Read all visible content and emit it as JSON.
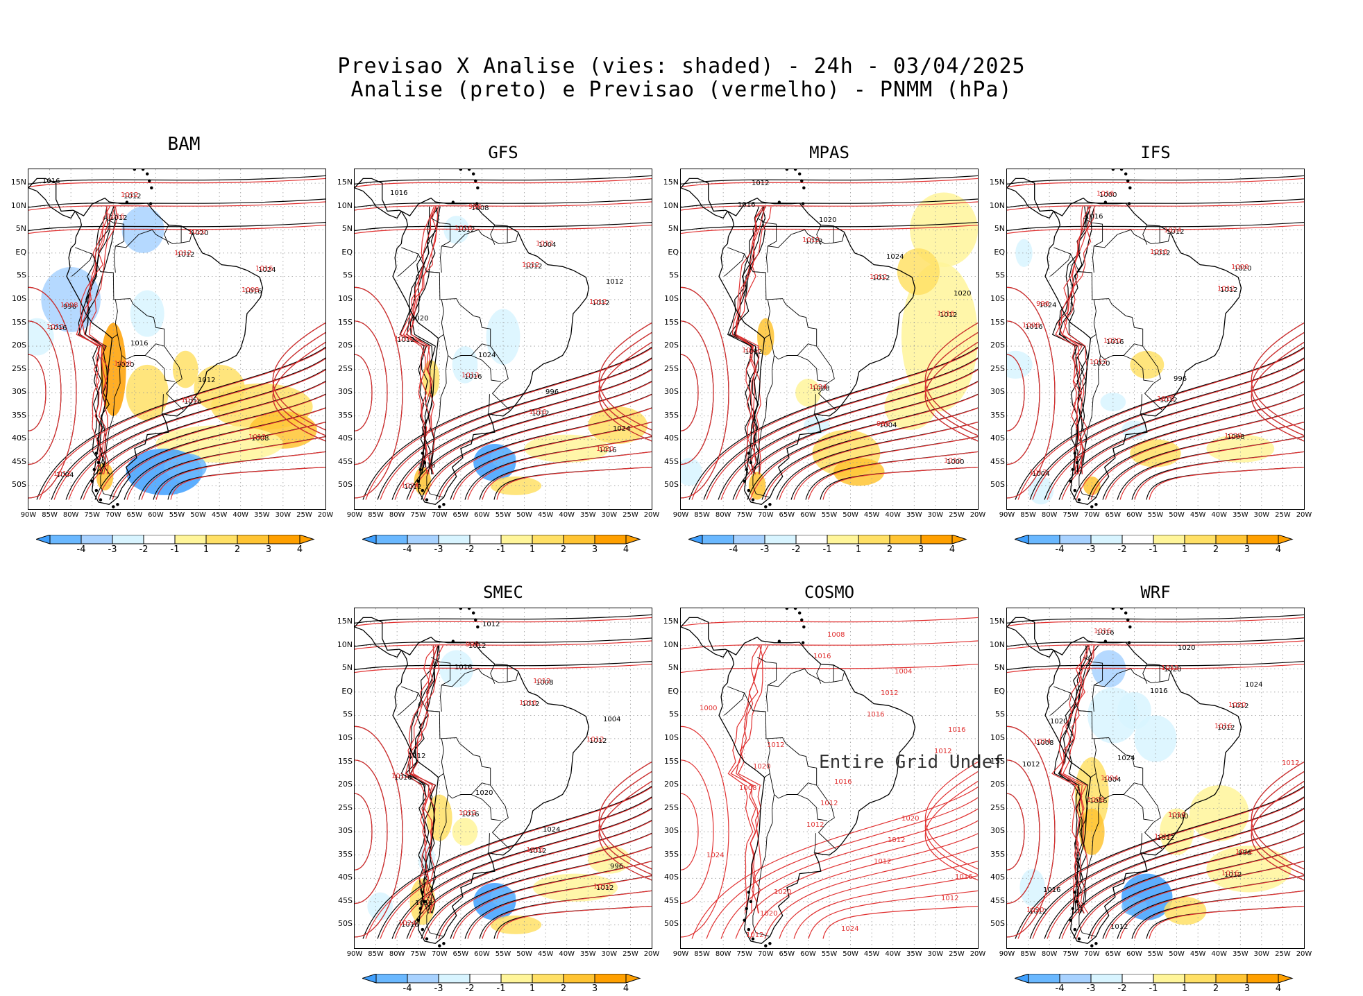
{
  "title": {
    "line1": "Previsao X Analise (vies: shaded) - 24h - 03/04/2025",
    "line2": "Analise (preto) e Previsao (vermelho) - PNMM (hPa)"
  },
  "latitude_labels": [
    "15N",
    "10N",
    "5N",
    "EQ",
    "5S",
    "10S",
    "15S",
    "20S",
    "25S",
    "30S",
    "35S",
    "40S",
    "45S",
    "50S"
  ],
  "longitude_labels": [
    "90W",
    "85W",
    "80W",
    "75W",
    "70W",
    "65W",
    "60W",
    "55W",
    "50W",
    "45W",
    "40W",
    "35W",
    "30W",
    "25W",
    "20W"
  ],
  "colorbar": {
    "labels": [
      "-4",
      "-3",
      "-2",
      "-1",
      "1",
      "2",
      "3",
      "4"
    ],
    "colors": [
      "#3fa0ff",
      "#6ab8ff",
      "#a8d2ff",
      "#d8f4ff",
      "#ffffff",
      "#fff59a",
      "#ffe066",
      "#ffc433",
      "#ffa000"
    ]
  },
  "colors": {
    "analysis": "#000000",
    "forecast": "#e03030"
  },
  "undef_text": "Entire Grid Undef",
  "panels": [
    {
      "name": "BAM",
      "shaded": true,
      "has_analysis": true,
      "has_colorbar": true,
      "labels_black": [
        "1016",
        "1012",
        "1012",
        "1016",
        "1016",
        "1020",
        "1016",
        "1008",
        "1004",
        "1012",
        "1020",
        "1024",
        "996",
        "1016",
        "1012"
      ],
      "labels_red": [
        "1016",
        "1012",
        "1008",
        "1012",
        "1008",
        "1012",
        "1012",
        "1012",
        "1012",
        "1020",
        "1016",
        "1008"
      ]
    },
    {
      "name": "GFS",
      "shaded": true,
      "has_analysis": true,
      "has_colorbar": true,
      "labels_black": [
        "1016",
        "1012",
        "1012",
        "1012",
        "1012",
        "1016",
        "1012",
        "1016",
        "1012",
        "1008",
        "1004",
        "1012",
        "1020",
        "1024",
        "996",
        "1024",
        "1016"
      ],
      "labels_red": [
        "1016",
        "1012",
        "1012",
        "1016",
        "1012",
        "1016",
        "1020",
        "1024",
        "996",
        "1012"
      ]
    },
    {
      "name": "MPAS",
      "shaded": true,
      "has_analysis": true,
      "has_colorbar": true,
      "labels_black": [
        "1016",
        "1012",
        "1012",
        "1012",
        "1012",
        "1008",
        "1004",
        "1000",
        "1012",
        "1020",
        "1024",
        "1020"
      ],
      "labels_red": [
        "1012",
        "1012",
        "1016",
        "1012",
        "1024",
        "996",
        "1012"
      ]
    },
    {
      "name": "IFS",
      "shaded": true,
      "has_analysis": true,
      "has_colorbar": true,
      "labels_black": [
        "1016",
        "1012",
        "1012",
        "1016",
        "1020",
        "1012",
        "1008",
        "1004",
        "1000",
        "1012",
        "1020",
        "1024",
        "1016",
        "996"
      ],
      "labels_red": [
        "1016",
        "1012",
        "1008",
        "1012",
        "1016",
        "1020",
        "1012",
        "1016",
        "1024",
        "1000",
        "996",
        "1020"
      ]
    },
    {
      "name": "SMEC",
      "shaded": true,
      "has_analysis": true,
      "has_colorbar": true,
      "labels_black": [
        "1016",
        "1012",
        "1012",
        "1016",
        "1016",
        "1012",
        "1012",
        "1016",
        "1012",
        "1008",
        "1004",
        "1012",
        "1020",
        "1024",
        "996",
        "1016",
        "1012"
      ],
      "labels_red": [
        "1016",
        "1012",
        "1012",
        "1012",
        "1016",
        "1012",
        "1024",
        "996",
        "1012"
      ]
    },
    {
      "name": "COSMO",
      "shaded": false,
      "has_analysis": false,
      "has_colorbar": false,
      "labels_black": [],
      "labels_red": [
        "1016",
        "1012",
        "1008",
        "1012",
        "1012",
        "1012",
        "1012",
        "1016",
        "1012",
        "1016",
        "1020",
        "1012",
        "1012",
        "1016",
        "1020",
        "1008",
        "1004",
        "1000",
        "1012",
        "1016",
        "1020",
        "1024",
        "1020",
        "1024"
      ]
    },
    {
      "name": "WRF",
      "shaded": true,
      "has_analysis": true,
      "has_colorbar": true,
      "labels_black": [
        "1016",
        "1012",
        "1012",
        "1016",
        "1012",
        "1012",
        "1012",
        "1016",
        "1020",
        "1012",
        "1008",
        "1004",
        "1000",
        "996",
        "1016",
        "1012",
        "1020",
        "1024",
        "1020",
        "1024"
      ],
      "labels_red": [
        "1016",
        "1012",
        "1008",
        "1012",
        "1016",
        "1020",
        "1016",
        "1012",
        "1020",
        "1024",
        "1004",
        "1016",
        "1012"
      ]
    }
  ]
}
